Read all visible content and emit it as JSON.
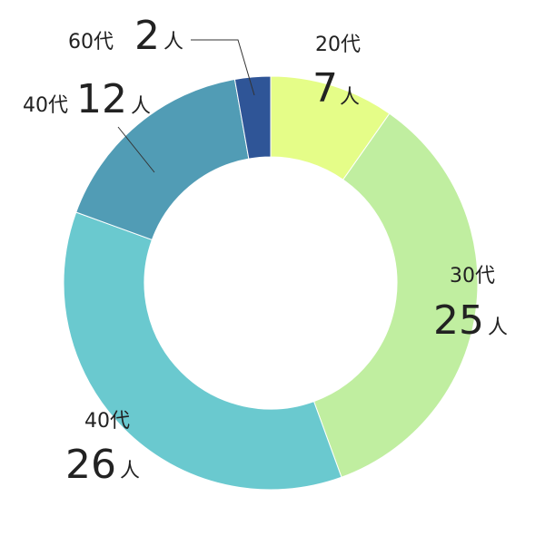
{
  "chart_data": {
    "type": "donut",
    "categories": [
      "20代",
      "30代",
      "40代",
      "40代",
      "60代"
    ],
    "values": [
      7,
      25,
      26,
      12,
      2
    ],
    "unit": "人",
    "colors": [
      "#e5fd88",
      "#c0eea0",
      "#6ac9cf",
      "#519cb5",
      "#2f5597"
    ]
  }
}
